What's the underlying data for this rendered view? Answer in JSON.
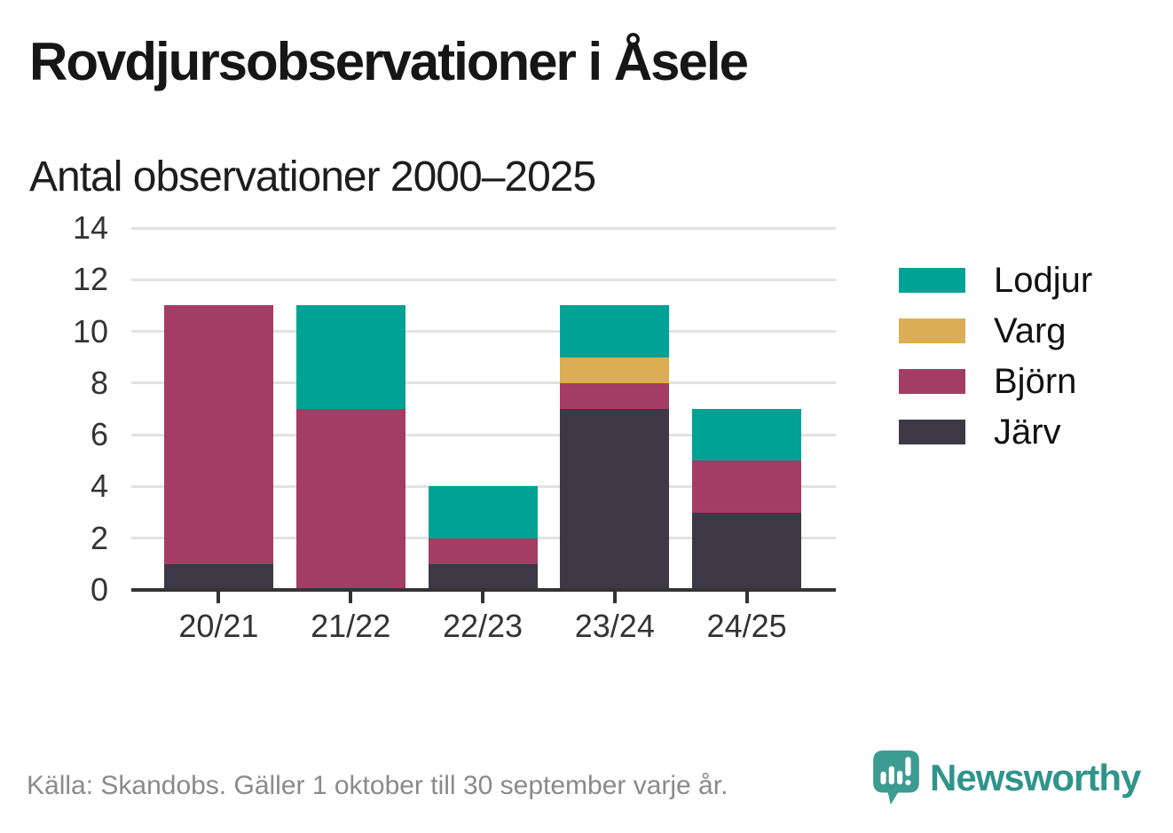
{
  "header": {
    "title": "Rovdjursobservationer i Åsele",
    "subtitle": "Antal observationer 2000–2025"
  },
  "chart_data": {
    "type": "bar",
    "stacked": true,
    "title": "Rovdjursobservationer i Åsele",
    "subtitle": "Antal observationer 2000–2025",
    "categories": [
      "20/21",
      "21/22",
      "22/23",
      "23/24",
      "24/25"
    ],
    "series": [
      {
        "name": "Järv",
        "color": "#3c3845",
        "values": [
          1,
          0,
          1,
          7,
          3
        ]
      },
      {
        "name": "Björn",
        "color": "#a33d63",
        "values": [
          10,
          7,
          1,
          1,
          2
        ]
      },
      {
        "name": "Varg",
        "color": "#dbae56",
        "values": [
          0,
          0,
          0,
          1,
          0
        ]
      },
      {
        "name": "Lodjur",
        "color": "#00a296",
        "values": [
          0,
          4,
          2,
          2,
          2
        ]
      }
    ],
    "totals": [
      11,
      11,
      4,
      11,
      7
    ],
    "legend_order": [
      "Lodjur",
      "Varg",
      "Björn",
      "Järv"
    ],
    "legend_position": "right",
    "xlabel": "",
    "ylabel": "",
    "ylim": [
      0,
      14
    ],
    "ytick_step": 2,
    "yticks": [
      0,
      2,
      4,
      6,
      8,
      10,
      12,
      14
    ],
    "grid": true
  },
  "footer": {
    "source": "Källa: Skandobs. Gäller 1 oktober till 30 september varje år.",
    "brand": "Newsworthy",
    "brand_color": "#2f948b",
    "brand_icon": "bar-chart-speech-bubble-icon",
    "brand_icon_color": "#3d9c92"
  }
}
